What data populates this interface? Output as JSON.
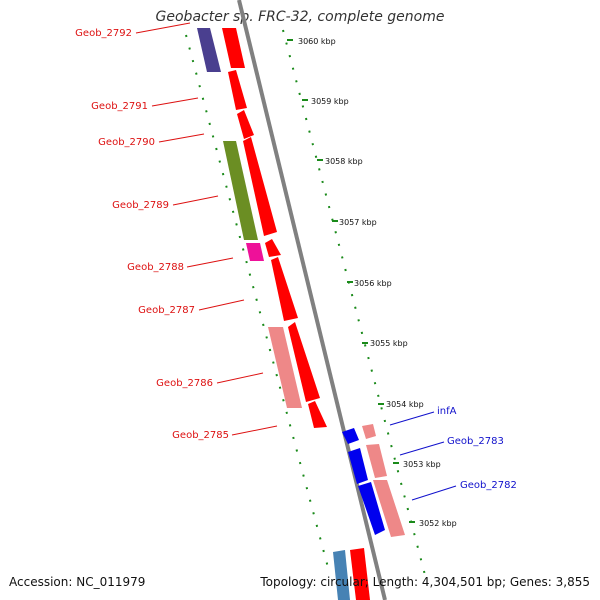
{
  "title": "Geobacter sp. FRC-32, complete genome",
  "footer": {
    "accession": "Accession: NC_011979",
    "topology": "Topology: circular; Length: 4,304,501 bp; Genes: 3,855"
  },
  "colors": {
    "backbone": "#808080",
    "tick_mark": "#1a8a1a",
    "red": "#ff0000",
    "pink": "#ee8888",
    "olive": "#6b8e23",
    "magenta": "#ee1199",
    "indigo": "#4a3f8f",
    "blue": "#0000ee",
    "steel_blue": "#4682b4",
    "label_red": "#dd1111",
    "label_blue": "#1111cc"
  },
  "scale_labels": [
    "3060 kbp",
    "3059 kbp",
    "3058 kbp",
    "3057 kbp",
    "3056 kbp",
    "3055 kbp",
    "3054 kbp",
    "3053 kbp",
    "3052 kbp"
  ],
  "gene_labels_left": [
    "Geob_2792",
    "Geob_2791",
    "Geob_2790",
    "Geob_2789",
    "Geob_2788",
    "Geob_2787",
    "Geob_2786",
    "Geob_2785"
  ],
  "gene_labels_right": [
    "infA",
    "Geob_2783",
    "Geob_2782"
  ]
}
